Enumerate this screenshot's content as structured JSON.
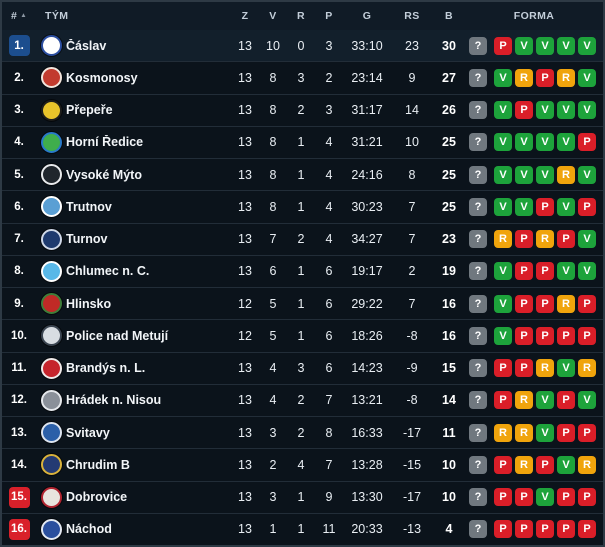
{
  "colors": {
    "win": "#1da33b",
    "draw": "#f0a40c",
    "loss": "#da1e28",
    "unknown": "#70787f",
    "leader_rank": "#1c4e8e",
    "relegation_rank": "#d9202a",
    "header_bg": "#101b26",
    "row_bg": "#0b131b",
    "row_highlight_bg": "#121f2b",
    "divider": "#222d38",
    "border": "#2e3a45",
    "text": "#e9eef3",
    "muted_text": "#c3ced9"
  },
  "table": {
    "columns": {
      "rank": "#",
      "team": "TÝM",
      "z": "Z",
      "v": "V",
      "r": "R",
      "p": "P",
      "g": "G",
      "rs": "RS",
      "b": "B",
      "forma": "FORMA"
    },
    "sort_indicator": "▲",
    "rows": [
      {
        "rank": "1.",
        "badge": "leader",
        "highlighted": true,
        "team": "Čáslav",
        "z": "13",
        "v": "10",
        "r": "0",
        "p": "3",
        "g": "33:10",
        "rs": "23",
        "b": "30",
        "forma": [
          "?",
          "P",
          "V",
          "V",
          "V",
          "V"
        ],
        "logo": {
          "bg": "#ffffff",
          "ring": "#2b4ea0"
        }
      },
      {
        "rank": "2.",
        "badge": "none",
        "highlighted": false,
        "team": "Kosmonosy",
        "z": "13",
        "v": "8",
        "r": "3",
        "p": "2",
        "g": "23:14",
        "rs": "9",
        "b": "27",
        "forma": [
          "?",
          "V",
          "R",
          "P",
          "R",
          "V"
        ],
        "logo": {
          "bg": "#c23b2e",
          "ring": "#f1e4dc"
        }
      },
      {
        "rank": "3.",
        "badge": "none",
        "highlighted": false,
        "team": "Přepeře",
        "z": "13",
        "v": "8",
        "r": "2",
        "p": "3",
        "g": "31:17",
        "rs": "14",
        "b": "26",
        "forma": [
          "?",
          "V",
          "P",
          "V",
          "V",
          "V"
        ],
        "logo": {
          "bg": "#e8c32a",
          "ring": "#1d1d1b"
        }
      },
      {
        "rank": "4.",
        "badge": "none",
        "highlighted": false,
        "team": "Horní Ředice",
        "z": "13",
        "v": "8",
        "r": "1",
        "p": "4",
        "g": "31:21",
        "rs": "10",
        "b": "25",
        "forma": [
          "?",
          "V",
          "V",
          "V",
          "V",
          "P"
        ],
        "logo": {
          "bg": "#3fae4c",
          "ring": "#2979c8"
        }
      },
      {
        "rank": "5.",
        "badge": "none",
        "highlighted": false,
        "team": "Vysoké Mýto",
        "z": "13",
        "v": "8",
        "r": "1",
        "p": "4",
        "g": "24:16",
        "rs": "8",
        "b": "25",
        "forma": [
          "?",
          "V",
          "V",
          "V",
          "R",
          "V"
        ],
        "logo": {
          "bg": "#20262c",
          "ring": "#e8eaec"
        }
      },
      {
        "rank": "6.",
        "badge": "none",
        "highlighted": false,
        "team": "Trutnov",
        "z": "13",
        "v": "8",
        "r": "1",
        "p": "4",
        "g": "30:23",
        "rs": "7",
        "b": "25",
        "forma": [
          "?",
          "V",
          "V",
          "P",
          "V",
          "P"
        ],
        "logo": {
          "bg": "#5a9fd4",
          "ring": "#ffffff"
        }
      },
      {
        "rank": "7.",
        "badge": "none",
        "highlighted": false,
        "team": "Turnov",
        "z": "13",
        "v": "7",
        "r": "2",
        "p": "4",
        "g": "34:27",
        "rs": "7",
        "b": "23",
        "forma": [
          "?",
          "R",
          "P",
          "R",
          "P",
          "V"
        ],
        "logo": {
          "bg": "#1e3a6e",
          "ring": "#cfd8e8"
        }
      },
      {
        "rank": "8.",
        "badge": "none",
        "highlighted": false,
        "team": "Chlumec n. C.",
        "z": "13",
        "v": "6",
        "r": "1",
        "p": "6",
        "g": "19:17",
        "rs": "2",
        "b": "19",
        "forma": [
          "?",
          "V",
          "P",
          "P",
          "V",
          "V"
        ],
        "logo": {
          "bg": "#59b8e8",
          "ring": "#ffffff"
        }
      },
      {
        "rank": "9.",
        "badge": "none",
        "highlighted": false,
        "team": "Hlinsko",
        "z": "12",
        "v": "5",
        "r": "1",
        "p": "6",
        "g": "29:22",
        "rs": "7",
        "b": "16",
        "forma": [
          "?",
          "V",
          "P",
          "P",
          "R",
          "P"
        ],
        "logo": {
          "bg": "#c02a26",
          "ring": "#3e7d3a"
        }
      },
      {
        "rank": "10.",
        "badge": "none",
        "highlighted": false,
        "team": "Police nad Metují",
        "z": "12",
        "v": "5",
        "r": "1",
        "p": "6",
        "g": "18:26",
        "rs": "-8",
        "b": "16",
        "forma": [
          "?",
          "V",
          "P",
          "P",
          "P",
          "P"
        ],
        "logo": {
          "bg": "#d8dde2",
          "ring": "#3a4450"
        }
      },
      {
        "rank": "11.",
        "badge": "none",
        "highlighted": false,
        "team": "Brandýs n. L.",
        "z": "13",
        "v": "4",
        "r": "3",
        "p": "6",
        "g": "14:23",
        "rs": "-9",
        "b": "15",
        "forma": [
          "?",
          "P",
          "P",
          "R",
          "V",
          "R"
        ],
        "logo": {
          "bg": "#c6242c",
          "ring": "#efe9e9"
        }
      },
      {
        "rank": "12.",
        "badge": "none",
        "highlighted": false,
        "team": "Hrádek n. Nisou",
        "z": "13",
        "v": "4",
        "r": "2",
        "p": "7",
        "g": "13:21",
        "rs": "-8",
        "b": "14",
        "forma": [
          "?",
          "P",
          "R",
          "V",
          "P",
          "V"
        ],
        "logo": {
          "bg": "#8a9099",
          "ring": "#e5e8ec"
        }
      },
      {
        "rank": "13.",
        "badge": "none",
        "highlighted": false,
        "team": "Svitavy",
        "z": "13",
        "v": "3",
        "r": "2",
        "p": "8",
        "g": "16:33",
        "rs": "-17",
        "b": "11",
        "forma": [
          "?",
          "R",
          "R",
          "V",
          "P",
          "P"
        ],
        "logo": {
          "bg": "#2b5fa8",
          "ring": "#dce4f0"
        }
      },
      {
        "rank": "14.",
        "badge": "none",
        "highlighted": false,
        "team": "Chrudim B",
        "z": "13",
        "v": "2",
        "r": "4",
        "p": "7",
        "g": "13:28",
        "rs": "-15",
        "b": "10",
        "forma": [
          "?",
          "P",
          "R",
          "P",
          "V",
          "R"
        ],
        "logo": {
          "bg": "#243a73",
          "ring": "#d9b23c"
        }
      },
      {
        "rank": "15.",
        "badge": "relegation",
        "highlighted": false,
        "team": "Dobrovice",
        "z": "13",
        "v": "3",
        "r": "1",
        "p": "9",
        "g": "13:30",
        "rs": "-17",
        "b": "10",
        "forma": [
          "?",
          "P",
          "P",
          "V",
          "P",
          "P"
        ],
        "logo": {
          "bg": "#e8e4de",
          "ring": "#b02430"
        }
      },
      {
        "rank": "16.",
        "badge": "relegation",
        "highlighted": false,
        "team": "Náchod",
        "z": "13",
        "v": "1",
        "r": "1",
        "p": "11",
        "g": "20:33",
        "rs": "-13",
        "b": "4",
        "forma": [
          "?",
          "P",
          "P",
          "P",
          "P",
          "P"
        ],
        "logo": {
          "bg": "#2a4f9e",
          "ring": "#e2e8f2"
        }
      }
    ]
  }
}
